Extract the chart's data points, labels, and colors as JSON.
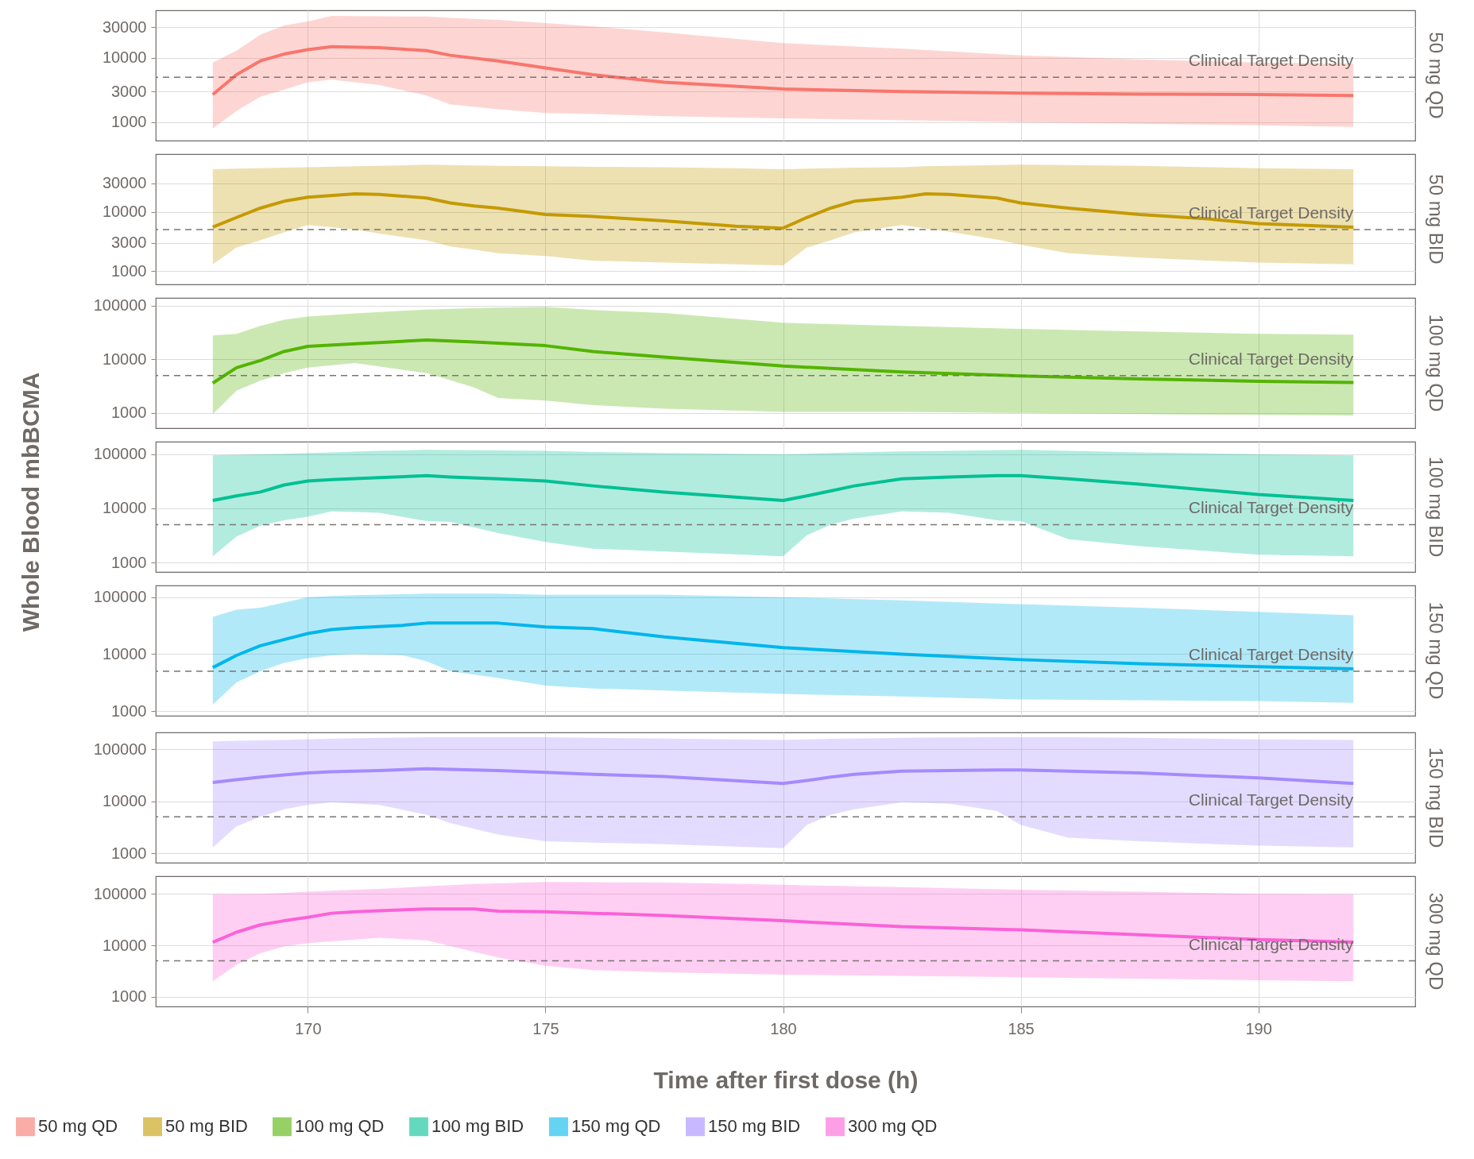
{
  "chart_data": [
    {
      "type": "line",
      "title": "50 mg QD",
      "xlim": [
        166.8,
        193.3
      ],
      "xticks": [
        170,
        175,
        180,
        185,
        190
      ],
      "ylim": [
        520,
        55000
      ],
      "yticks": [
        1000,
        3000,
        10000,
        30000
      ],
      "log": "y",
      "grid": true,
      "legend": "bottom",
      "tick_labels": "y",
      "ref_lines": [
        {
          "axis": "y",
          "value": 5000,
          "label": "Clinical Target Density",
          "line_style": "dashed"
        }
      ],
      "series": [
        {
          "name": "50 mg QD",
          "color": "#f8766d",
          "x": [
            168,
            168.5,
            169,
            169.5,
            170,
            170.5,
            171.5,
            172.5,
            173,
            174,
            175,
            176,
            177.5,
            180,
            182.5,
            185,
            187.5,
            190,
            192
          ],
          "values": [
            2700,
            5500,
            9000,
            11500,
            13500,
            15000,
            14500,
            13000,
            11000,
            9000,
            7000,
            5500,
            4200,
            3300,
            3000,
            2850,
            2750,
            2700,
            2600
          ],
          "upper": [
            8500,
            13000,
            23000,
            32000,
            37000,
            45000,
            44500,
            44000,
            42000,
            39000,
            35000,
            31000,
            25000,
            17000,
            14000,
            11000,
            9500,
            8500,
            8200
          ],
          "lower": [
            800,
            1500,
            2500,
            3200,
            4200,
            4600,
            3800,
            2600,
            1900,
            1600,
            1400,
            1350,
            1250,
            1150,
            1080,
            1000,
            950,
            900,
            850
          ]
        }
      ]
    },
    {
      "type": "line",
      "title": "50 mg BID",
      "xlim": [
        166.8,
        193.3
      ],
      "xticks": [
        170,
        175,
        180,
        185,
        190
      ],
      "ylim": [
        600,
        93000
      ],
      "yticks": [
        1000,
        3000,
        10000,
        30000
      ],
      "log": "y",
      "grid": true,
      "legend": "bottom",
      "tick_labels": "y",
      "ref_lines": [
        {
          "axis": "y",
          "value": 5000,
          "label": "Clinical Target Density",
          "line_style": "dashed"
        }
      ],
      "series": [
        {
          "name": "50 mg BID",
          "color": "#c49a00",
          "x": [
            168,
            168.5,
            169,
            169.5,
            170,
            171,
            171.5,
            172.5,
            173,
            173.5,
            174,
            175,
            176,
            177.5,
            179,
            180,
            180.5,
            181,
            181.5,
            182.5,
            183,
            183.5,
            184.5,
            185,
            186,
            187.5,
            189,
            190,
            192
          ],
          "values": [
            5500,
            8000,
            11500,
            15000,
            17500,
            20000,
            19500,
            17000,
            14000,
            12500,
            11500,
            9000,
            8300,
            7000,
            5700,
            5300,
            8000,
            11500,
            15000,
            17500,
            20000,
            19500,
            17000,
            14000,
            11500,
            9000,
            7500,
            6300,
            5500
          ],
          "upper": [
            52000,
            53000,
            54000,
            55000,
            56000,
            58000,
            59000,
            62000,
            61000,
            60000,
            59000,
            58000,
            57000,
            56000,
            54000,
            52000,
            53000,
            54000,
            55000,
            56000,
            58000,
            59000,
            61000,
            62000,
            61000,
            59000,
            56000,
            54000,
            52000
          ],
          "lower": [
            1300,
            2500,
            3300,
            4500,
            6000,
            5000,
            4300,
            3300,
            2600,
            2300,
            2000,
            1800,
            1500,
            1400,
            1300,
            1250,
            2500,
            3300,
            4500,
            6000,
            5200,
            4600,
            3400,
            2800,
            2000,
            1700,
            1500,
            1400,
            1300
          ]
        }
      ]
    },
    {
      "type": "line",
      "title": "100 mg QD",
      "xlim": [
        166.8,
        193.3
      ],
      "xticks": [
        170,
        175,
        180,
        185,
        190
      ],
      "ylim": [
        520,
        140000
      ],
      "yticks": [
        1000,
        10000,
        100000
      ],
      "log": "y",
      "grid": true,
      "legend": "bottom",
      "tick_labels": "y",
      "ref_lines": [
        {
          "axis": "y",
          "value": 5000,
          "label": "Clinical Target Density",
          "line_style": "dashed"
        }
      ],
      "series": [
        {
          "name": "100 mg QD",
          "color": "#53b400",
          "x": [
            168,
            168.5,
            169,
            169.5,
            170,
            171,
            172.5,
            173.5,
            174,
            175,
            176,
            177.5,
            180,
            182.5,
            185,
            187.5,
            190,
            192
          ],
          "values": [
            3600,
            7000,
            9500,
            14000,
            17500,
            19500,
            23000,
            21000,
            20000,
            18000,
            14000,
            11000,
            7500,
            5800,
            4900,
            4300,
            3900,
            3700
          ],
          "upper": [
            28000,
            30000,
            42000,
            55000,
            63000,
            72000,
            85000,
            90000,
            92000,
            95000,
            83000,
            73000,
            48000,
            42000,
            37000,
            33000,
            30000,
            29000
          ],
          "lower": [
            950,
            2600,
            4000,
            5500,
            7000,
            8500,
            5500,
            3000,
            1900,
            1700,
            1400,
            1200,
            1050,
            1050,
            1000,
            950,
            920,
            900
          ]
        }
      ]
    },
    {
      "type": "line",
      "title": "100 mg BID",
      "ylabel": "Whole Blood mbBCMA",
      "xlim": [
        166.8,
        193.3
      ],
      "xticks": [
        170,
        175,
        180,
        185,
        190
      ],
      "ylim": [
        670,
        170000
      ],
      "yticks": [
        1000,
        10000,
        100000
      ],
      "log": "y",
      "grid": true,
      "legend": "bottom",
      "tick_labels": "y",
      "ref_lines": [
        {
          "axis": "y",
          "value": 5000,
          "label": "Clinical Target Density",
          "line_style": "dashed"
        }
      ],
      "series": [
        {
          "name": "100 mg BID",
          "color": "#00c094",
          "x": [
            168,
            168.5,
            169,
            169.5,
            170,
            170.5,
            171.5,
            172.5,
            173,
            174,
            175,
            176,
            177.5,
            180,
            180.5,
            181,
            181.5,
            182.5,
            183.5,
            184.5,
            185,
            186,
            187.5,
            190,
            192
          ],
          "values": [
            14000,
            17000,
            20000,
            27000,
            32000,
            34000,
            37000,
            40000,
            38000,
            35000,
            32000,
            26000,
            20000,
            14000,
            17000,
            21000,
            26000,
            35000,
            38000,
            40000,
            40000,
            35000,
            28000,
            18000,
            14000
          ],
          "upper": [
            95000,
            97000,
            100000,
            102000,
            105000,
            108000,
            115000,
            120000,
            119000,
            117000,
            115000,
            110000,
            105000,
            100000,
            102000,
            105000,
            108000,
            112000,
            115000,
            118000,
            120000,
            115000,
            108000,
            100000,
            95000
          ],
          "lower": [
            1300,
            3000,
            4800,
            6000,
            7000,
            8800,
            8300,
            5800,
            5600,
            3500,
            2400,
            1800,
            1600,
            1300,
            3200,
            5000,
            6500,
            8800,
            8300,
            6000,
            5800,
            2700,
            2000,
            1400,
            1300
          ]
        }
      ]
    },
    {
      "type": "line",
      "title": "150 mg QD",
      "xlim": [
        166.8,
        193.3
      ],
      "xticks": [
        170,
        175,
        180,
        185,
        190
      ],
      "ylim": [
        830,
        160000
      ],
      "yticks": [
        1000,
        10000,
        100000
      ],
      "log": "y",
      "grid": true,
      "legend": "bottom",
      "tick_labels": "y",
      "ref_lines": [
        {
          "axis": "y",
          "value": 5000,
          "label": "Clinical Target Density",
          "line_style": "dashed"
        }
      ],
      "series": [
        {
          "name": "150 mg QD",
          "color": "#00b6eb",
          "x": [
            168,
            168.5,
            169,
            169.5,
            170,
            170.5,
            171,
            172,
            172.5,
            173,
            174,
            175,
            176,
            177.5,
            180,
            182.5,
            185,
            187.5,
            190,
            192
          ],
          "values": [
            5800,
            9500,
            14000,
            18000,
            23000,
            27000,
            29000,
            32000,
            35000,
            35000,
            35000,
            30000,
            28000,
            20000,
            13000,
            10000,
            8000,
            6800,
            6000,
            5500
          ],
          "upper": [
            45000,
            60000,
            65000,
            80000,
            100000,
            105000,
            108000,
            112000,
            115000,
            115000,
            115000,
            110000,
            110000,
            110000,
            100000,
            88000,
            75000,
            65000,
            55000,
            48000
          ],
          "lower": [
            1300,
            3200,
            5000,
            7000,
            8500,
            9500,
            10000,
            9500,
            7500,
            5000,
            3800,
            2800,
            2500,
            2300,
            2000,
            1800,
            1600,
            1550,
            1500,
            1400
          ]
        }
      ]
    },
    {
      "type": "line",
      "title": "150 mg BID",
      "xlim": [
        166.8,
        193.3
      ],
      "xticks": [
        170,
        175,
        180,
        185,
        190
      ],
      "ylim": [
        660,
        210000
      ],
      "yticks": [
        1000,
        10000,
        100000
      ],
      "log": "y",
      "grid": true,
      "legend": "bottom",
      "tick_labels": "y",
      "ref_lines": [
        {
          "axis": "y",
          "value": 5000,
          "label": "Clinical Target Density",
          "line_style": "dashed"
        }
      ],
      "series": [
        {
          "name": "150 mg BID",
          "color": "#a58aff",
          "x": [
            168,
            168.5,
            169,
            169.5,
            170,
            170.5,
            171.5,
            172.5,
            173,
            174,
            175,
            176,
            177.5,
            180,
            180.5,
            181,
            181.5,
            182.5,
            183.5,
            184.5,
            185,
            186,
            187.5,
            190,
            192
          ],
          "values": [
            23000,
            26000,
            29000,
            32000,
            35000,
            37000,
            39000,
            42000,
            41000,
            39000,
            36000,
            33000,
            30000,
            22000,
            25000,
            29000,
            33000,
            38000,
            39000,
            40000,
            40000,
            38000,
            35000,
            28000,
            22000
          ],
          "upper": [
            140000,
            145000,
            148000,
            150000,
            155000,
            158000,
            165000,
            170000,
            170000,
            170000,
            170000,
            165000,
            160000,
            150000,
            155000,
            158000,
            160000,
            165000,
            168000,
            170000,
            170000,
            170000,
            165000,
            155000,
            150000
          ],
          "lower": [
            1300,
            3300,
            5000,
            7000,
            8500,
            9500,
            8500,
            5500,
            3800,
            2300,
            1700,
            1600,
            1500,
            1250,
            3500,
            5500,
            7000,
            9500,
            9000,
            6500,
            3500,
            2000,
            1700,
            1400,
            1300
          ]
        }
      ]
    },
    {
      "type": "line",
      "title": "300 mg QD",
      "xlabel": "Time after first dose (h)",
      "xlim": [
        166.8,
        193.3
      ],
      "xticks": [
        170,
        175,
        180,
        185,
        190
      ],
      "ylim": [
        650,
        220000
      ],
      "yticks": [
        1000,
        10000,
        100000
      ],
      "log": "y",
      "grid": true,
      "legend": "bottom",
      "ref_lines": [
        {
          "axis": "y",
          "value": 5000,
          "label": "Clinical Target Density",
          "line_style": "dashed"
        }
      ],
      "series": [
        {
          "name": "300 mg QD",
          "color": "#fb61d7",
          "x": [
            168,
            168.5,
            169,
            169.5,
            170,
            170.5,
            171,
            171.5,
            172.5,
            173.5,
            174,
            175,
            176,
            177.5,
            180,
            182.5,
            185,
            187.5,
            190,
            192
          ],
          "values": [
            11500,
            18000,
            25000,
            30000,
            35000,
            42000,
            45000,
            47000,
            51000,
            51000,
            46000,
            45000,
            42000,
            38000,
            30000,
            23000,
            20000,
            16000,
            13000,
            11500
          ],
          "upper": [
            98000,
            99000,
            100000,
            104000,
            110000,
            115000,
            120000,
            125000,
            140000,
            155000,
            160000,
            170000,
            168000,
            165000,
            150000,
            135000,
            120000,
            110000,
            100000,
            98000
          ],
          "lower": [
            2000,
            4200,
            7000,
            9500,
            11000,
            12000,
            13000,
            14000,
            12500,
            7500,
            5800,
            4000,
            3300,
            3000,
            2700,
            2550,
            2400,
            2250,
            2100,
            2000
          ]
        }
      ]
    }
  ]
}
